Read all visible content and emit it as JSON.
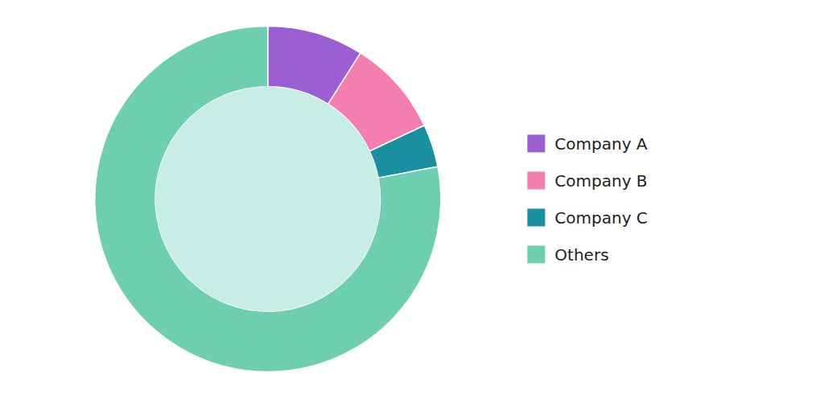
{
  "chart_data": {
    "type": "donut",
    "categories": [
      "Company A",
      "Company B",
      "Company C",
      "Others"
    ],
    "values": [
      9,
      9,
      4,
      78
    ],
    "colors": [
      "#9b5fd4",
      "#f47eb0",
      "#1a8fa0",
      "#6ecfb0"
    ],
    "legend": "right"
  }
}
